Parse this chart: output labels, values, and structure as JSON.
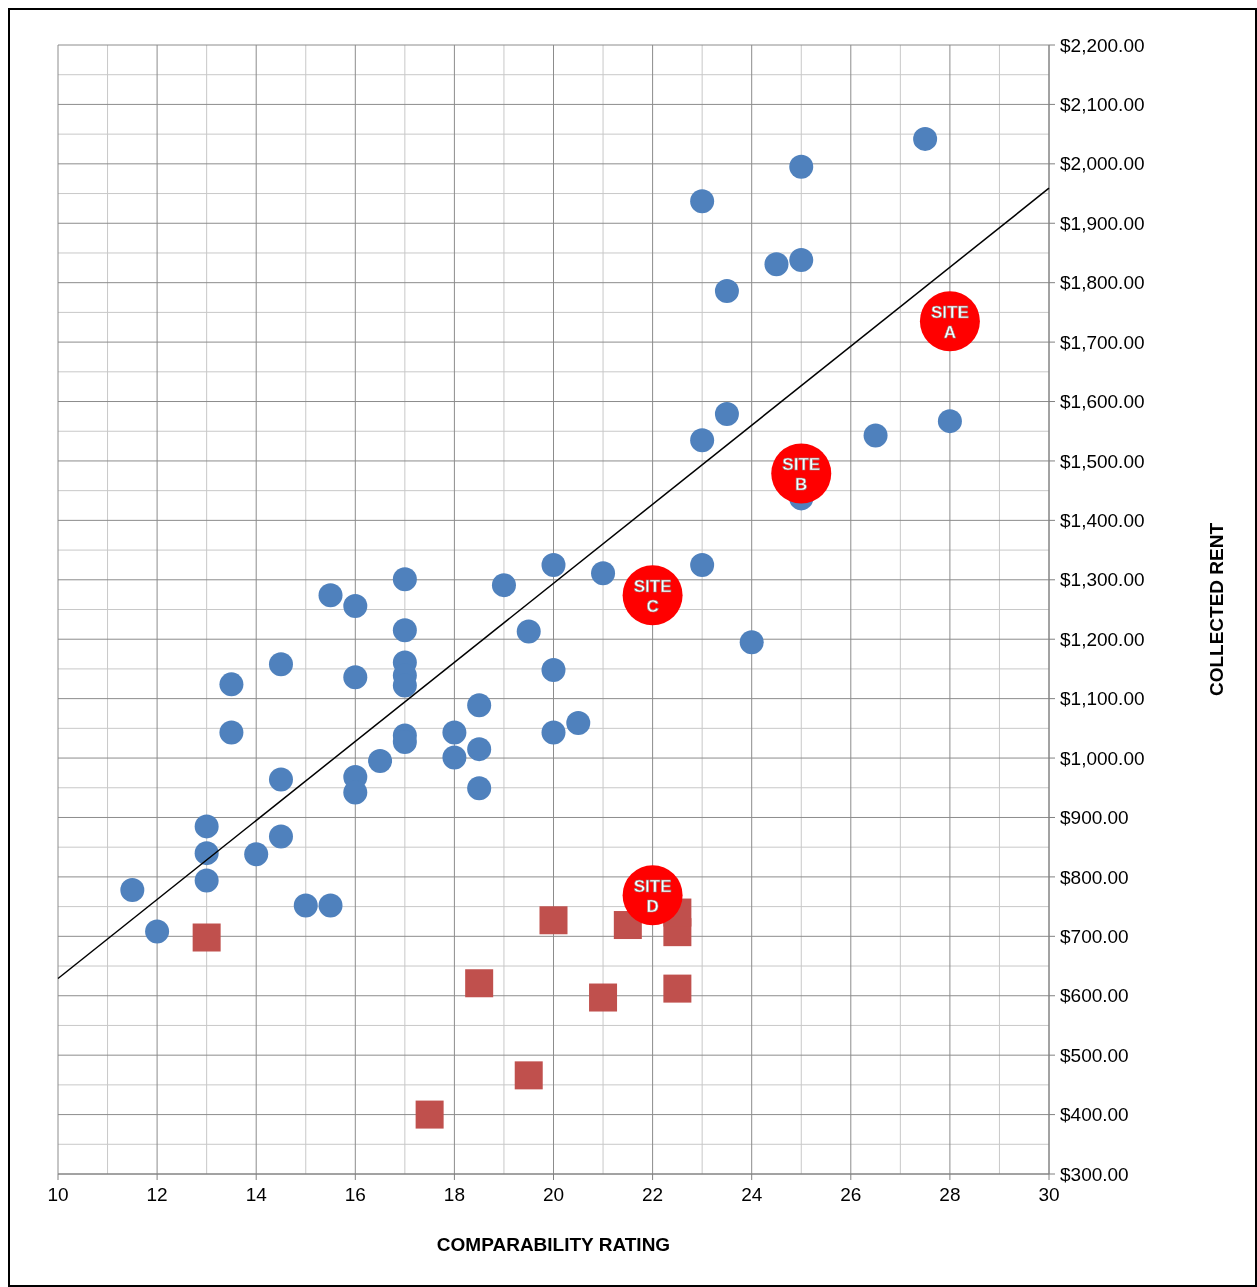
{
  "chart_data": {
    "type": "scatter",
    "xlabel": "COMPARABILITY RATING",
    "ylabel": "COLLECTED RENT",
    "xlim": [
      10,
      30
    ],
    "xticks": [
      10,
      12,
      14,
      16,
      18,
      20,
      22,
      24,
      26,
      28,
      30
    ],
    "ylim": [
      300,
      2200
    ],
    "yticks": [
      {
        "value": 300,
        "label": "$300.00"
      },
      {
        "value": 400,
        "label": "$400.00"
      },
      {
        "value": 500,
        "label": "$500.00"
      },
      {
        "value": 600,
        "label": "$600.00"
      },
      {
        "value": 700,
        "label": "$700.00"
      },
      {
        "value": 800,
        "label": "$800.00"
      },
      {
        "value": 900,
        "label": "$900.00"
      },
      {
        "value": 1000,
        "label": "$1,000.00"
      },
      {
        "value": 1100,
        "label": "$1,100.00"
      },
      {
        "value": 1200,
        "label": "$1,200.00"
      },
      {
        "value": 1300,
        "label": "$1,300.00"
      },
      {
        "value": 1400,
        "label": "$1,400.00"
      },
      {
        "value": 1500,
        "label": "$1,500.00"
      },
      {
        "value": 1600,
        "label": "$1,600.00"
      },
      {
        "value": 1700,
        "label": "$1,700.00"
      },
      {
        "value": 1800,
        "label": "$1,800.00"
      },
      {
        "value": 1900,
        "label": "$1,900.00"
      },
      {
        "value": 2000,
        "label": "$2,000.00"
      },
      {
        "value": 2100,
        "label": "$2,100.00"
      },
      {
        "value": 2200,
        "label": "$2,200.00"
      }
    ],
    "grid": true,
    "series": [
      {
        "marker": "circle",
        "color": "#4f81bd",
        "x": [
          11.5,
          12,
          13,
          13,
          13,
          13.5,
          13.5,
          14,
          14.5,
          14.5,
          14.5,
          15,
          15.5,
          15.5,
          16,
          16,
          16,
          16,
          16.5,
          17,
          17,
          17,
          17,
          17,
          17,
          17,
          18,
          18,
          18.5,
          18.5,
          18.5,
          19,
          19.5,
          20,
          20,
          20,
          20.5,
          21,
          23,
          23,
          23,
          23.5,
          23.5,
          24,
          24.5,
          25,
          25,
          25,
          26.5,
          27.5,
          28
        ],
        "values": [
          778,
          708,
          840,
          885,
          794,
          1124,
          1043,
          838,
          1158,
          964,
          868,
          752,
          1274,
          752,
          1256,
          1136,
          968,
          942,
          995,
          1301,
          1215,
          1161,
          1139,
          1122,
          1038,
          1027,
          1043,
          1001,
          1089,
          1015,
          949,
          1291,
          1213,
          1325,
          1148,
          1043,
          1059,
          1311,
          1937,
          1535,
          1325,
          1786,
          1579,
          1195,
          1831,
          1995,
          1838,
          1437,
          1543,
          2042,
          1567
        ]
      },
      {
        "marker": "square",
        "color": "#c0504d",
        "x": [
          13,
          17.5,
          18.5,
          19.5,
          20,
          21,
          21.5,
          22.5,
          22.5,
          22.5
        ],
        "values": [
          698,
          400,
          621,
          466,
          727,
          597,
          719,
          707,
          612,
          740
        ]
      },
      {
        "type": "line",
        "color": "#000000",
        "x": [
          10,
          30
        ],
        "values": [
          629,
          1959
        ]
      },
      {
        "marker": "circle",
        "color": "#ff0000",
        "x": [
          28,
          25,
          22,
          22
        ],
        "values": [
          1735,
          1479,
          1274,
          769
        ],
        "value_labels": [
          "SITE A",
          "SITE B",
          "SITE C",
          "SITE D"
        ]
      }
    ]
  }
}
